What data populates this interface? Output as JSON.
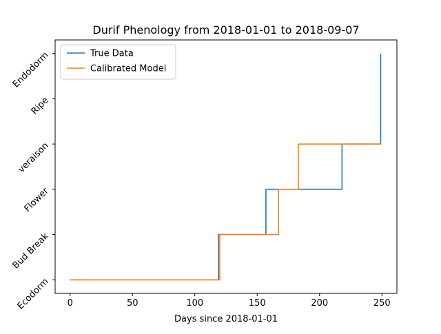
{
  "chart_data": {
    "type": "line",
    "title": "Durif Phenology from 2018-01-01 to 2018-09-07",
    "xlabel": "Days since 2018-01-01",
    "ylabel": "",
    "xlim": [
      -12,
      262
    ],
    "ylim": [
      -0.3,
      5.3
    ],
    "xticks": [
      0,
      50,
      100,
      150,
      200,
      250
    ],
    "yticks": [
      0,
      1,
      2,
      3,
      4,
      5
    ],
    "ytick_labels": [
      "Ecodorm",
      "Bud Break",
      "Flower",
      "veraison",
      "Ripe",
      "Endodorm"
    ],
    "legend_position": "top-left",
    "grid": false,
    "series": [
      {
        "name": "True Data",
        "color": "#1f77b4",
        "x": [
          0,
          119,
          119,
          157,
          157,
          218,
          218,
          249,
          249
        ],
        "y": [
          0,
          0,
          1,
          1,
          2,
          2,
          3,
          3,
          5
        ]
      },
      {
        "name": "Calibrated Model",
        "color": "#ff7f0e",
        "x": [
          0,
          120,
          120,
          167,
          167,
          183,
          183,
          249
        ],
        "y": [
          0,
          0,
          1,
          1,
          2,
          2,
          3,
          3
        ]
      }
    ]
  }
}
